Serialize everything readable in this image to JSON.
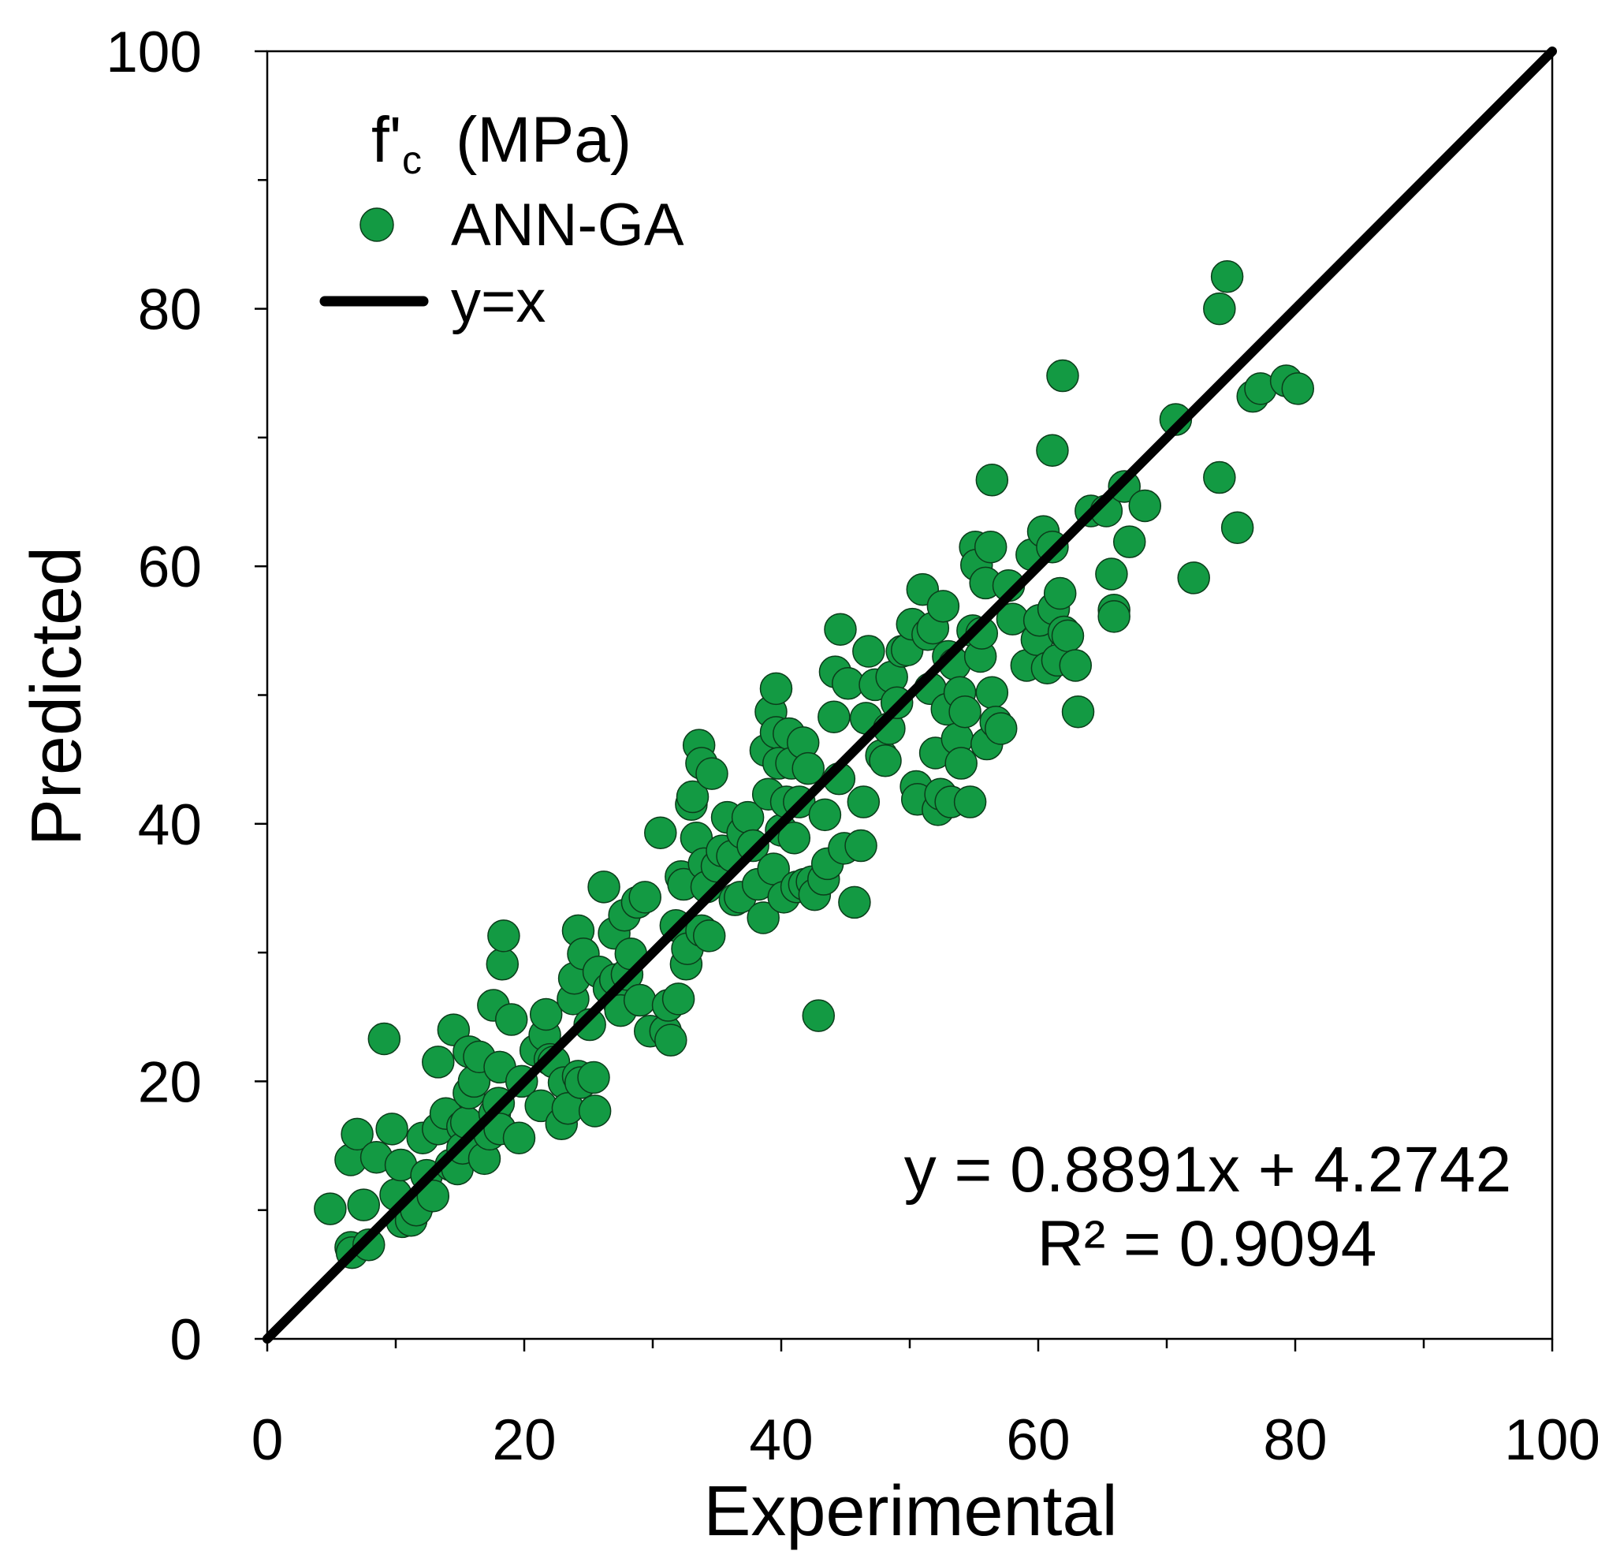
{
  "chart_data": {
    "type": "scatter",
    "title": "",
    "xlabel": "Experimental",
    "ylabel": "Predicted",
    "xlim": [
      0,
      100
    ],
    "ylim": [
      0,
      100
    ],
    "xticks": [
      0,
      20,
      40,
      60,
      80,
      100
    ],
    "yticks": [
      0,
      20,
      40,
      60,
      80,
      100
    ],
    "xminor": [
      10,
      30,
      50,
      70,
      90
    ],
    "yminor": [
      10,
      30,
      50,
      70,
      90
    ],
    "grid": false,
    "legend_position": "top-left",
    "legend": {
      "title_main": "f'",
      "title_sub": "c",
      "title_unit": "(MPa)"
    },
    "series": [
      {
        "name": "ANN-GA",
        "type": "scatter",
        "color": "#139a43",
        "edge_color": "#0b3d1a",
        "x": [
          4.9,
          6.5,
          6.6,
          7.9,
          6.5,
          7.0,
          7.5,
          8.5,
          9.1,
          9.7,
          10.0,
          10.4,
          10.5,
          11.2,
          11.7,
          11.6,
          12.1,
          12.4,
          12.9,
          13.3,
          13.3,
          13.9,
          14.3,
          14.5,
          14.8,
          15.2,
          15.2,
          15.5,
          15.7,
          15.7,
          16.1,
          16.5,
          16.9,
          17.3,
          17.6,
          17.7,
          18.0,
          18.1,
          18.1,
          18.3,
          18.4,
          19.0,
          19.6,
          19.8,
          20.9,
          21.3,
          21.6,
          21.7,
          22.0,
          22.3,
          22.9,
          23.1,
          23.4,
          23.8,
          23.9,
          24.2,
          24.2,
          24.4,
          24.6,
          25.1,
          25.4,
          25.5,
          25.8,
          26.2,
          26.6,
          27.0,
          27.1,
          27.4,
          27.5,
          27.8,
          28.0,
          28.3,
          28.8,
          29.0,
          29.4,
          29.8,
          30.6,
          31.0,
          31.2,
          31.4,
          31.8,
          32.0,
          32.2,
          32.4,
          32.6,
          32.7,
          33.0,
          33.1,
          33.4,
          33.6,
          33.8,
          33.8,
          34.0,
          34.2,
          34.4,
          34.6,
          35.0,
          35.4,
          35.8,
          36.2,
          36.4,
          36.8,
          37.0,
          37.4,
          37.8,
          38.2,
          38.6,
          38.8,
          39.0,
          39.2,
          39.4,
          39.6,
          39.6,
          39.8,
          40.0,
          40.2,
          40.4,
          40.6,
          40.8,
          41.0,
          41.2,
          41.4,
          41.7,
          41.8,
          42.1,
          42.4,
          42.6,
          42.9,
          43.3,
          43.4,
          43.6,
          44.1,
          44.2,
          44.5,
          44.6,
          44.9,
          45.2,
          45.7,
          46.2,
          46.4,
          46.6,
          46.8,
          47.3,
          47.8,
          48.1,
          48.4,
          48.6,
          49.0,
          49.4,
          49.8,
          50.2,
          50.5,
          50.6,
          51.0,
          51.4,
          51.6,
          51.8,
          52.0,
          52.2,
          52.4,
          52.6,
          52.9,
          53.0,
          53.2,
          53.5,
          53.7,
          53.9,
          54.0,
          54.3,
          54.7,
          54.9,
          55.1,
          55.2,
          55.5,
          55.6,
          55.9,
          56.0,
          56.3,
          56.4,
          56.4,
          56.7,
          57.1,
          57.7,
          58.0,
          59.1,
          59.5,
          59.9,
          60.1,
          60.4,
          60.7,
          61.1,
          61.1,
          61.2,
          61.5,
          61.7,
          61.9,
          62.0,
          62.3,
          62.9,
          63.1,
          64.1,
          65.3,
          65.7,
          65.9,
          65.9,
          66.7,
          67.1,
          68.3,
          70.7,
          72.1,
          74.1,
          74.1,
          74.7,
          75.5,
          76.7,
          77.3,
          79.3,
          80.2
        ],
        "y": [
          10.1,
          7.1,
          6.7,
          7.3,
          13.9,
          15.9,
          10.4,
          14.1,
          23.3,
          16.3,
          11.2,
          13.5,
          9.1,
          9.2,
          10.3,
          10.0,
          15.6,
          12.7,
          11.1,
          16.3,
          21.5,
          17.5,
          13.5,
          24.0,
          13.2,
          16.5,
          14.8,
          16.8,
          19.1,
          22.3,
          20.0,
          21.9,
          14.0,
          15.9,
          25.9,
          17.5,
          18.3,
          21.1,
          16.3,
          29.1,
          31.3,
          24.8,
          15.6,
          20.0,
          22.4,
          18.1,
          23.6,
          25.2,
          21.7,
          21.5,
          16.7,
          19.9,
          17.9,
          26.4,
          28.0,
          31.7,
          20.4,
          19.9,
          29.9,
          24.4,
          20.3,
          17.7,
          28.5,
          35.1,
          27.2,
          31.5,
          27.9,
          26.0,
          25.5,
          32.9,
          28.3,
          29.9,
          33.9,
          26.3,
          34.3,
          23.9,
          39.3,
          23.9,
          25.9,
          23.2,
          32.1,
          26.4,
          35.9,
          35.3,
          29.1,
          30.3,
          41.5,
          42.1,
          38.9,
          46.1,
          44.7,
          31.7,
          36.9,
          35.1,
          31.3,
          43.9,
          36.7,
          37.9,
          40.5,
          37.5,
          34.1,
          34.3,
          39.3,
          40.5,
          38.3,
          35.3,
          32.7,
          45.7,
          42.3,
          48.7,
          36.5,
          50.5,
          47.1,
          44.7,
          39.5,
          34.3,
          41.7,
          47.0,
          44.7,
          38.9,
          35.1,
          41.7,
          46.3,
          35.3,
          44.3,
          35.5,
          34.5,
          25.1,
          35.7,
          40.7,
          36.9,
          48.3,
          51.8,
          43.5,
          55.1,
          38.1,
          50.9,
          33.9,
          38.3,
          41.7,
          48.2,
          53.4,
          50.8,
          45.3,
          44.9,
          47.4,
          51.4,
          49.4,
          53.4,
          53.5,
          55.5,
          42.9,
          41.9,
          58.2,
          54.7,
          50.5,
          55.2,
          45.5,
          41.1,
          42.3,
          56.9,
          48.9,
          53.0,
          41.7,
          52.4,
          46.6,
          50.2,
          44.7,
          48.7,
          41.7,
          55.0,
          61.5,
          60.1,
          53.0,
          54.8,
          58.7,
          46.2,
          61.5,
          66.7,
          50.2,
          47.9,
          47.4,
          58.5,
          55.9,
          52.3,
          60.9,
          54.3,
          55.8,
          62.7,
          52.1,
          69.0,
          61.5,
          56.7,
          52.7,
          57.9,
          74.8,
          54.9,
          54.6,
          52.3,
          48.7,
          64.3,
          64.3,
          59.4,
          56.6,
          56.1,
          66.2,
          61.9,
          64.7,
          71.4,
          59.1,
          80.0,
          66.9,
          82.5,
          63.0,
          73.2,
          73.8,
          74.4,
          73.8
        ]
      },
      {
        "name": "y=x",
        "type": "line",
        "color": "#000000",
        "x": [
          0,
          100
        ],
        "y": [
          0,
          100
        ]
      }
    ],
    "annotations": [
      "y = 0.8891x + 4.2742",
      "R² = 0.9094"
    ]
  }
}
